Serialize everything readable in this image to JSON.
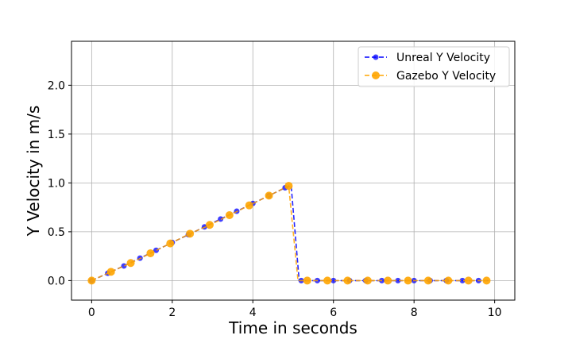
{
  "chart_data": {
    "type": "line",
    "xlabel": "Time in seconds",
    "ylabel": "Y Velocity in m/s",
    "xlim": [
      -0.5,
      10.5
    ],
    "ylim": [
      -0.2,
      2.45
    ],
    "xticks": [
      0,
      2,
      4,
      6,
      8,
      10
    ],
    "yticks": [
      0.0,
      0.5,
      1.0,
      1.5,
      2.0
    ],
    "xtick_labels": [
      "0",
      "2",
      "4",
      "6",
      "8",
      "10"
    ],
    "ytick_labels": [
      "0.0",
      "0.5",
      "1.0",
      "1.5",
      "2.0"
    ],
    "grid": true,
    "legend_position": "top-right",
    "series": [
      {
        "name": "Unreal Y Velocity",
        "color": "#0000ff",
        "linestyle": "dashed",
        "marker": "circle-small",
        "x": [
          0,
          0.4,
          0.8,
          1.2,
          1.6,
          2.0,
          2.4,
          2.8,
          3.2,
          3.6,
          4.0,
          4.4,
          4.8,
          4.95,
          5.15,
          5.3,
          5.5,
          5.7,
          5.9,
          6.1,
          6.3,
          6.5,
          6.7,
          6.9,
          7.1,
          7.3,
          7.5,
          7.7,
          7.9,
          8.1,
          8.3,
          8.5,
          8.7,
          8.9,
          9.1,
          9.3,
          9.5,
          9.7,
          9.9
        ],
        "y": [
          0.0,
          0.075,
          0.15,
          0.23,
          0.31,
          0.39,
          0.47,
          0.55,
          0.63,
          0.71,
          0.79,
          0.87,
          0.95,
          0.97,
          0.0,
          0.0,
          0.0,
          0.0,
          0.0,
          0.0,
          0.0,
          0.0,
          0.0,
          0.0,
          0.0,
          0.0,
          0.0,
          0.0,
          0.0,
          0.0,
          0.0,
          0.0,
          0.0,
          0.0,
          0.0,
          0.0,
          0.0,
          0.0,
          0.0
        ],
        "markers_x": [
          0,
          0.4,
          0.8,
          1.2,
          1.6,
          2.0,
          2.4,
          2.8,
          3.2,
          3.6,
          4.0,
          4.4,
          4.8,
          5.2,
          5.6,
          6.0,
          6.4,
          6.8,
          7.2,
          7.6,
          8.0,
          8.4,
          8.8,
          9.2,
          9.6
        ],
        "markers_y": [
          0.0,
          0.075,
          0.15,
          0.23,
          0.31,
          0.39,
          0.47,
          0.55,
          0.63,
          0.71,
          0.79,
          0.87,
          0.95,
          0.0,
          0.0,
          0.0,
          0.0,
          0.0,
          0.0,
          0.0,
          0.0,
          0.0,
          0.0,
          0.0,
          0.0
        ]
      },
      {
        "name": "Gazebo Y Velocity",
        "color": "#ffa500",
        "linestyle": "dashed",
        "marker": "circle-large",
        "x": [
          0,
          0.48,
          0.97,
          1.46,
          1.95,
          2.44,
          2.93,
          3.42,
          3.91,
          4.4,
          4.89,
          5.12,
          5.35,
          5.85,
          6.35,
          6.85,
          7.35,
          7.85,
          8.35,
          8.85,
          9.35,
          9.8
        ],
        "y": [
          0.0,
          0.09,
          0.18,
          0.28,
          0.38,
          0.48,
          0.57,
          0.67,
          0.77,
          0.87,
          0.97,
          0.0,
          0.0,
          0.0,
          0.0,
          0.0,
          0.0,
          0.0,
          0.0,
          0.0,
          0.0,
          0.0
        ],
        "markers_x": [
          0,
          0.48,
          0.97,
          1.46,
          1.95,
          2.44,
          2.93,
          3.42,
          3.91,
          4.4,
          4.89,
          5.35,
          5.85,
          6.35,
          6.85,
          7.35,
          7.85,
          8.35,
          8.85,
          9.35,
          9.8
        ],
        "markers_y": [
          0.0,
          0.09,
          0.18,
          0.28,
          0.38,
          0.48,
          0.57,
          0.67,
          0.77,
          0.87,
          0.97,
          0.0,
          0.0,
          0.0,
          0.0,
          0.0,
          0.0,
          0.0,
          0.0,
          0.0,
          0.0
        ]
      }
    ]
  }
}
